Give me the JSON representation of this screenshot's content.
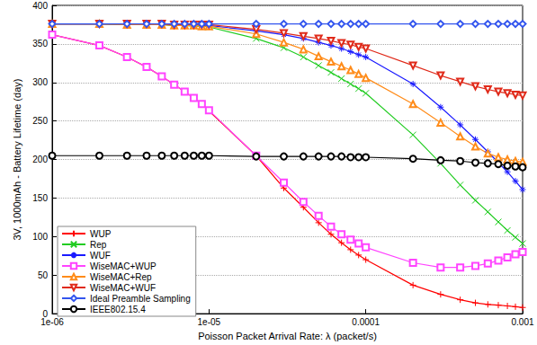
{
  "chart_data": {
    "type": "line",
    "x_label": "Poisson Packet Arrival Rate: λ (packet/s)",
    "y_label": "3V, 1000mAh - Battery Lifetime (day)",
    "log": "x",
    "grid": true,
    "legend": "lower left",
    "xlim": [
      1e-06,
      0.001
    ],
    "xticks": [
      {
        "value": 1e-06,
        "label": "1e-06"
      },
      {
        "value": 1e-05,
        "label": "1e-05"
      },
      0.0001,
      0.001
    ],
    "ylim": [
      0,
      400
    ],
    "yticks": [
      0,
      50,
      100,
      150,
      200,
      250,
      300,
      350,
      400
    ],
    "x": [
      1e-06,
      2e-06,
      3e-06,
      4e-06,
      5e-06,
      6e-06,
      7e-06,
      8e-06,
      9e-06,
      1e-05,
      2e-05,
      3e-05,
      4e-05,
      5e-05,
      6e-05,
      7e-05,
      8e-05,
      9e-05,
      0.0001,
      0.0002,
      0.0003,
      0.0004,
      0.0005,
      0.0006,
      0.0007,
      0.0008,
      0.0009,
      0.001
    ],
    "series": [
      {
        "name": "WUP",
        "color": "#ff0000",
        "marker": "plus",
        "values": [
          362,
          348,
          333,
          320,
          308,
          297,
          288,
          280,
          272,
          263,
          205,
          163,
          138,
          118,
          103,
          92,
          83,
          76,
          70,
          37,
          25,
          18,
          14,
          12,
          11,
          10,
          9,
          8
        ]
      },
      {
        "name": "Rep",
        "color": "#22cc22",
        "marker": "x",
        "values": [
          376,
          376,
          375,
          375,
          375,
          374,
          374,
          373,
          373,
          372,
          357,
          345,
          333,
          322,
          313,
          305,
          298,
          292,
          286,
          232,
          195,
          167,
          147,
          132,
          119,
          108,
          99,
          91
        ]
      },
      {
        "name": "WUF",
        "color": "#1a1aff",
        "marker": "star",
        "values": [
          376,
          376,
          376,
          376,
          375,
          375,
          375,
          375,
          374,
          374,
          367,
          362,
          357,
          352,
          348,
          344,
          340,
          336,
          333,
          298,
          268,
          245,
          226,
          210,
          196,
          184,
          172,
          161
        ]
      },
      {
        "name": "WiseMAC+WUP",
        "color": "#ff44ff",
        "marker": "square",
        "values": [
          362,
          348,
          333,
          320,
          308,
          297,
          288,
          280,
          272,
          264,
          205,
          170,
          145,
          127,
          113,
          103,
          96,
          91,
          86,
          66,
          60,
          60,
          62,
          65,
          69,
          73,
          77,
          80
        ]
      },
      {
        "name": "WiseMAC+Rep",
        "color": "#ff8c1a",
        "marker": "triangle",
        "values": [
          376,
          376,
          375,
          375,
          375,
          374,
          374,
          374,
          373,
          373,
          363,
          352,
          343,
          334,
          327,
          321,
          316,
          311,
          306,
          272,
          248,
          230,
          217,
          208,
          203,
          200,
          198,
          197
        ]
      },
      {
        "name": "WiseMAC+WUF",
        "color": "#e02a1a",
        "marker": "triangle_down",
        "values": [
          376,
          376,
          376,
          376,
          376,
          375,
          375,
          375,
          375,
          375,
          369,
          364,
          360,
          357,
          354,
          351,
          349,
          346,
          344,
          322,
          309,
          301,
          295,
          291,
          288,
          286,
          284,
          283
        ]
      },
      {
        "name": "Ideal Preamble Sampling",
        "color": "#3355ee",
        "marker": "diamond",
        "values": [
          376,
          376,
          376,
          376,
          376,
          376,
          376,
          376,
          376,
          376,
          376,
          376,
          376,
          376,
          376,
          376,
          376,
          376,
          376,
          376,
          376,
          376,
          376,
          376,
          376,
          376,
          376,
          376
        ]
      },
      {
        "name": "IEEE802.15.4",
        "color": "#000000",
        "marker": "circle",
        "values": [
          205,
          205,
          205,
          205,
          205,
          205,
          205,
          205,
          205,
          205,
          204,
          204,
          204,
          204,
          204,
          204,
          203,
          203,
          203,
          201,
          199,
          198,
          196,
          195,
          194,
          192,
          191,
          190
        ]
      }
    ]
  }
}
